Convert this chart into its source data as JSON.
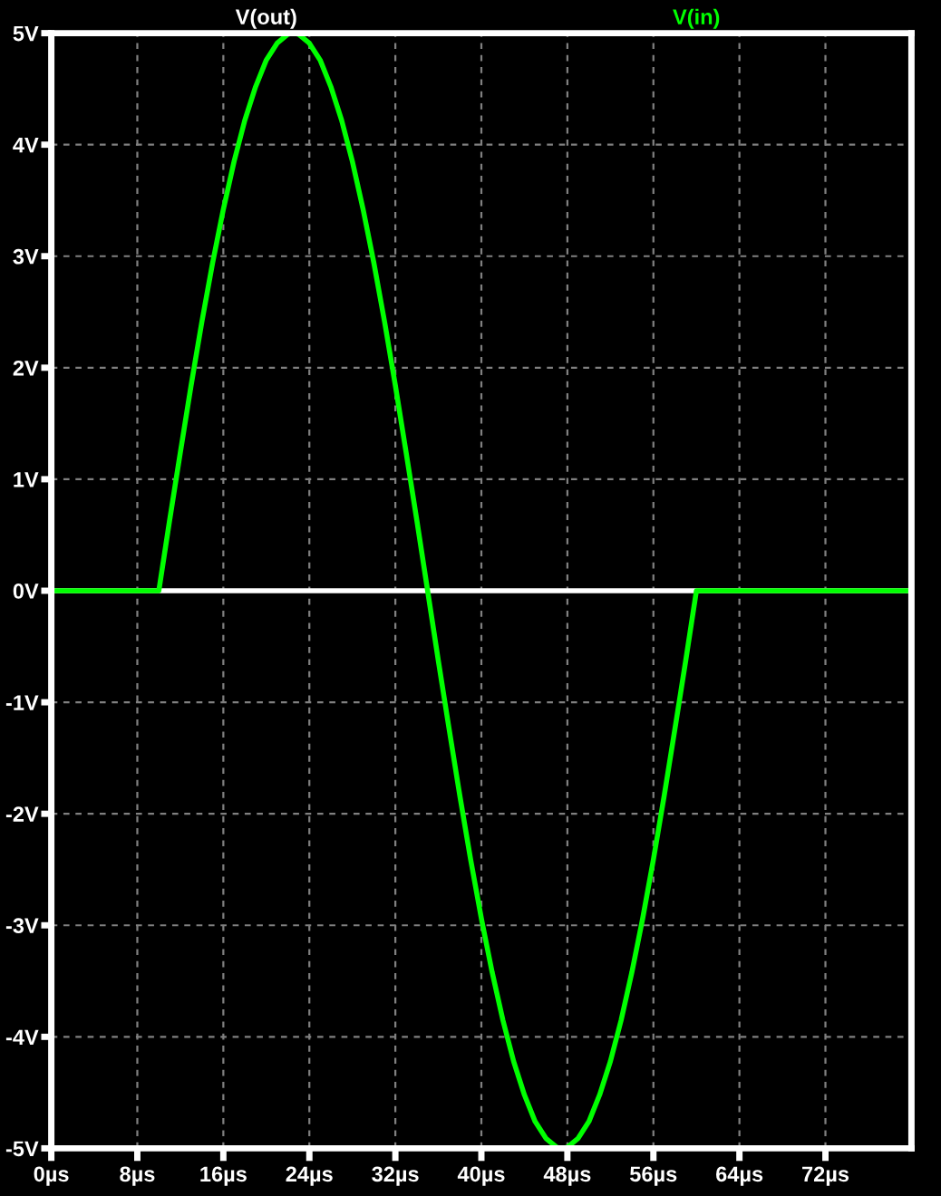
{
  "chart_data": {
    "type": "line",
    "series": [
      {
        "name": "V(out)",
        "color": "#ffffff",
        "x": [
          0,
          80
        ],
        "values": [
          0,
          0
        ]
      },
      {
        "name": "V(in)",
        "color": "#00ff00",
        "x": [
          0,
          10,
          11,
          12,
          13,
          14,
          15,
          16,
          17,
          18,
          19,
          20,
          21,
          22,
          22.5,
          23,
          24,
          25,
          26,
          27,
          28,
          29,
          30,
          31,
          32,
          33,
          34,
          35,
          36,
          37,
          38,
          39,
          40,
          41,
          42,
          43,
          44,
          45,
          46,
          47,
          47.5,
          48,
          49,
          50,
          51,
          52,
          53,
          54,
          55,
          56,
          57,
          58,
          59,
          60,
          80
        ],
        "values": [
          0,
          0,
          0.63,
          1.24,
          1.84,
          2.41,
          2.94,
          3.42,
          3.85,
          4.22,
          4.52,
          4.76,
          4.91,
          4.99,
          5,
          4.99,
          4.91,
          4.76,
          4.52,
          4.22,
          3.85,
          3.42,
          2.94,
          2.41,
          1.84,
          1.24,
          0.63,
          0,
          -0.63,
          -1.24,
          -1.84,
          -2.41,
          -2.94,
          -3.42,
          -3.85,
          -4.22,
          -4.52,
          -4.76,
          -4.91,
          -4.99,
          -5,
          -4.99,
          -4.91,
          -4.76,
          -4.52,
          -4.22,
          -3.85,
          -3.42,
          -2.94,
          -2.41,
          -1.84,
          -1.24,
          -0.63,
          0,
          0
        ]
      }
    ],
    "xlim": [
      0,
      80
    ],
    "xticks": [
      {
        "value": 0,
        "label": "0µs"
      },
      {
        "value": 8,
        "label": "8µs"
      },
      {
        "value": 16,
        "label": "16µs"
      },
      {
        "value": 24,
        "label": "24µs"
      },
      {
        "value": 32,
        "label": "32µs"
      },
      {
        "value": 40,
        "label": "40µs"
      },
      {
        "value": 48,
        "label": "48µs"
      },
      {
        "value": 56,
        "label": "56µs"
      },
      {
        "value": 64,
        "label": "64µs"
      },
      {
        "value": 72,
        "label": "72µs"
      }
    ],
    "ylim": [
      -5,
      5
    ],
    "yticks": [
      {
        "value": -5,
        "label": "-5V"
      },
      {
        "value": -4,
        "label": "-4V"
      },
      {
        "value": -3,
        "label": "-3V"
      },
      {
        "value": -2,
        "label": "-2V"
      },
      {
        "value": -1,
        "label": "-1V"
      },
      {
        "value": 0,
        "label": "0V"
      },
      {
        "value": 1,
        "label": "1V"
      },
      {
        "value": 2,
        "label": "2V"
      },
      {
        "value": 3,
        "label": "3V"
      },
      {
        "value": 4,
        "label": "4V"
      },
      {
        "value": 5,
        "label": "5V"
      }
    ],
    "grid": true,
    "legend": "top"
  }
}
